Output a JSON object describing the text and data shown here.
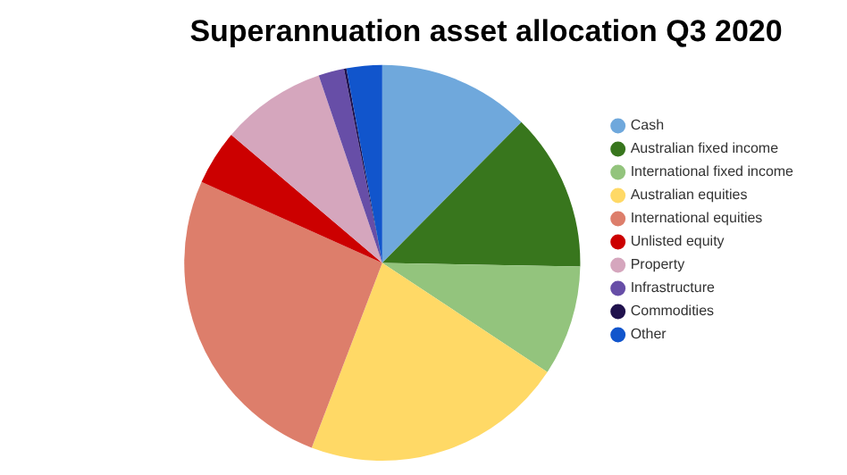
{
  "chart_data": {
    "type": "pie",
    "title": "Superannuation asset allocation Q3 2020",
    "categories": [
      "Cash",
      "Australian fixed income",
      "International fixed income",
      "Australian equities",
      "International equities",
      "Unlisted equity",
      "Property",
      "Infrastructure",
      "Commodities",
      "Other"
    ],
    "values": [
      12.4,
      12.9,
      9.0,
      21.5,
      25.9,
      4.5,
      8.6,
      2.1,
      0.2,
      2.9
    ],
    "colors": [
      "#6fa8dc",
      "#38761d",
      "#93c47d",
      "#ffd966",
      "#dd7e6b",
      "#cc0000",
      "#d5a6bd",
      "#674ea7",
      "#20124d",
      "#1155cc"
    ],
    "legend": "right"
  }
}
